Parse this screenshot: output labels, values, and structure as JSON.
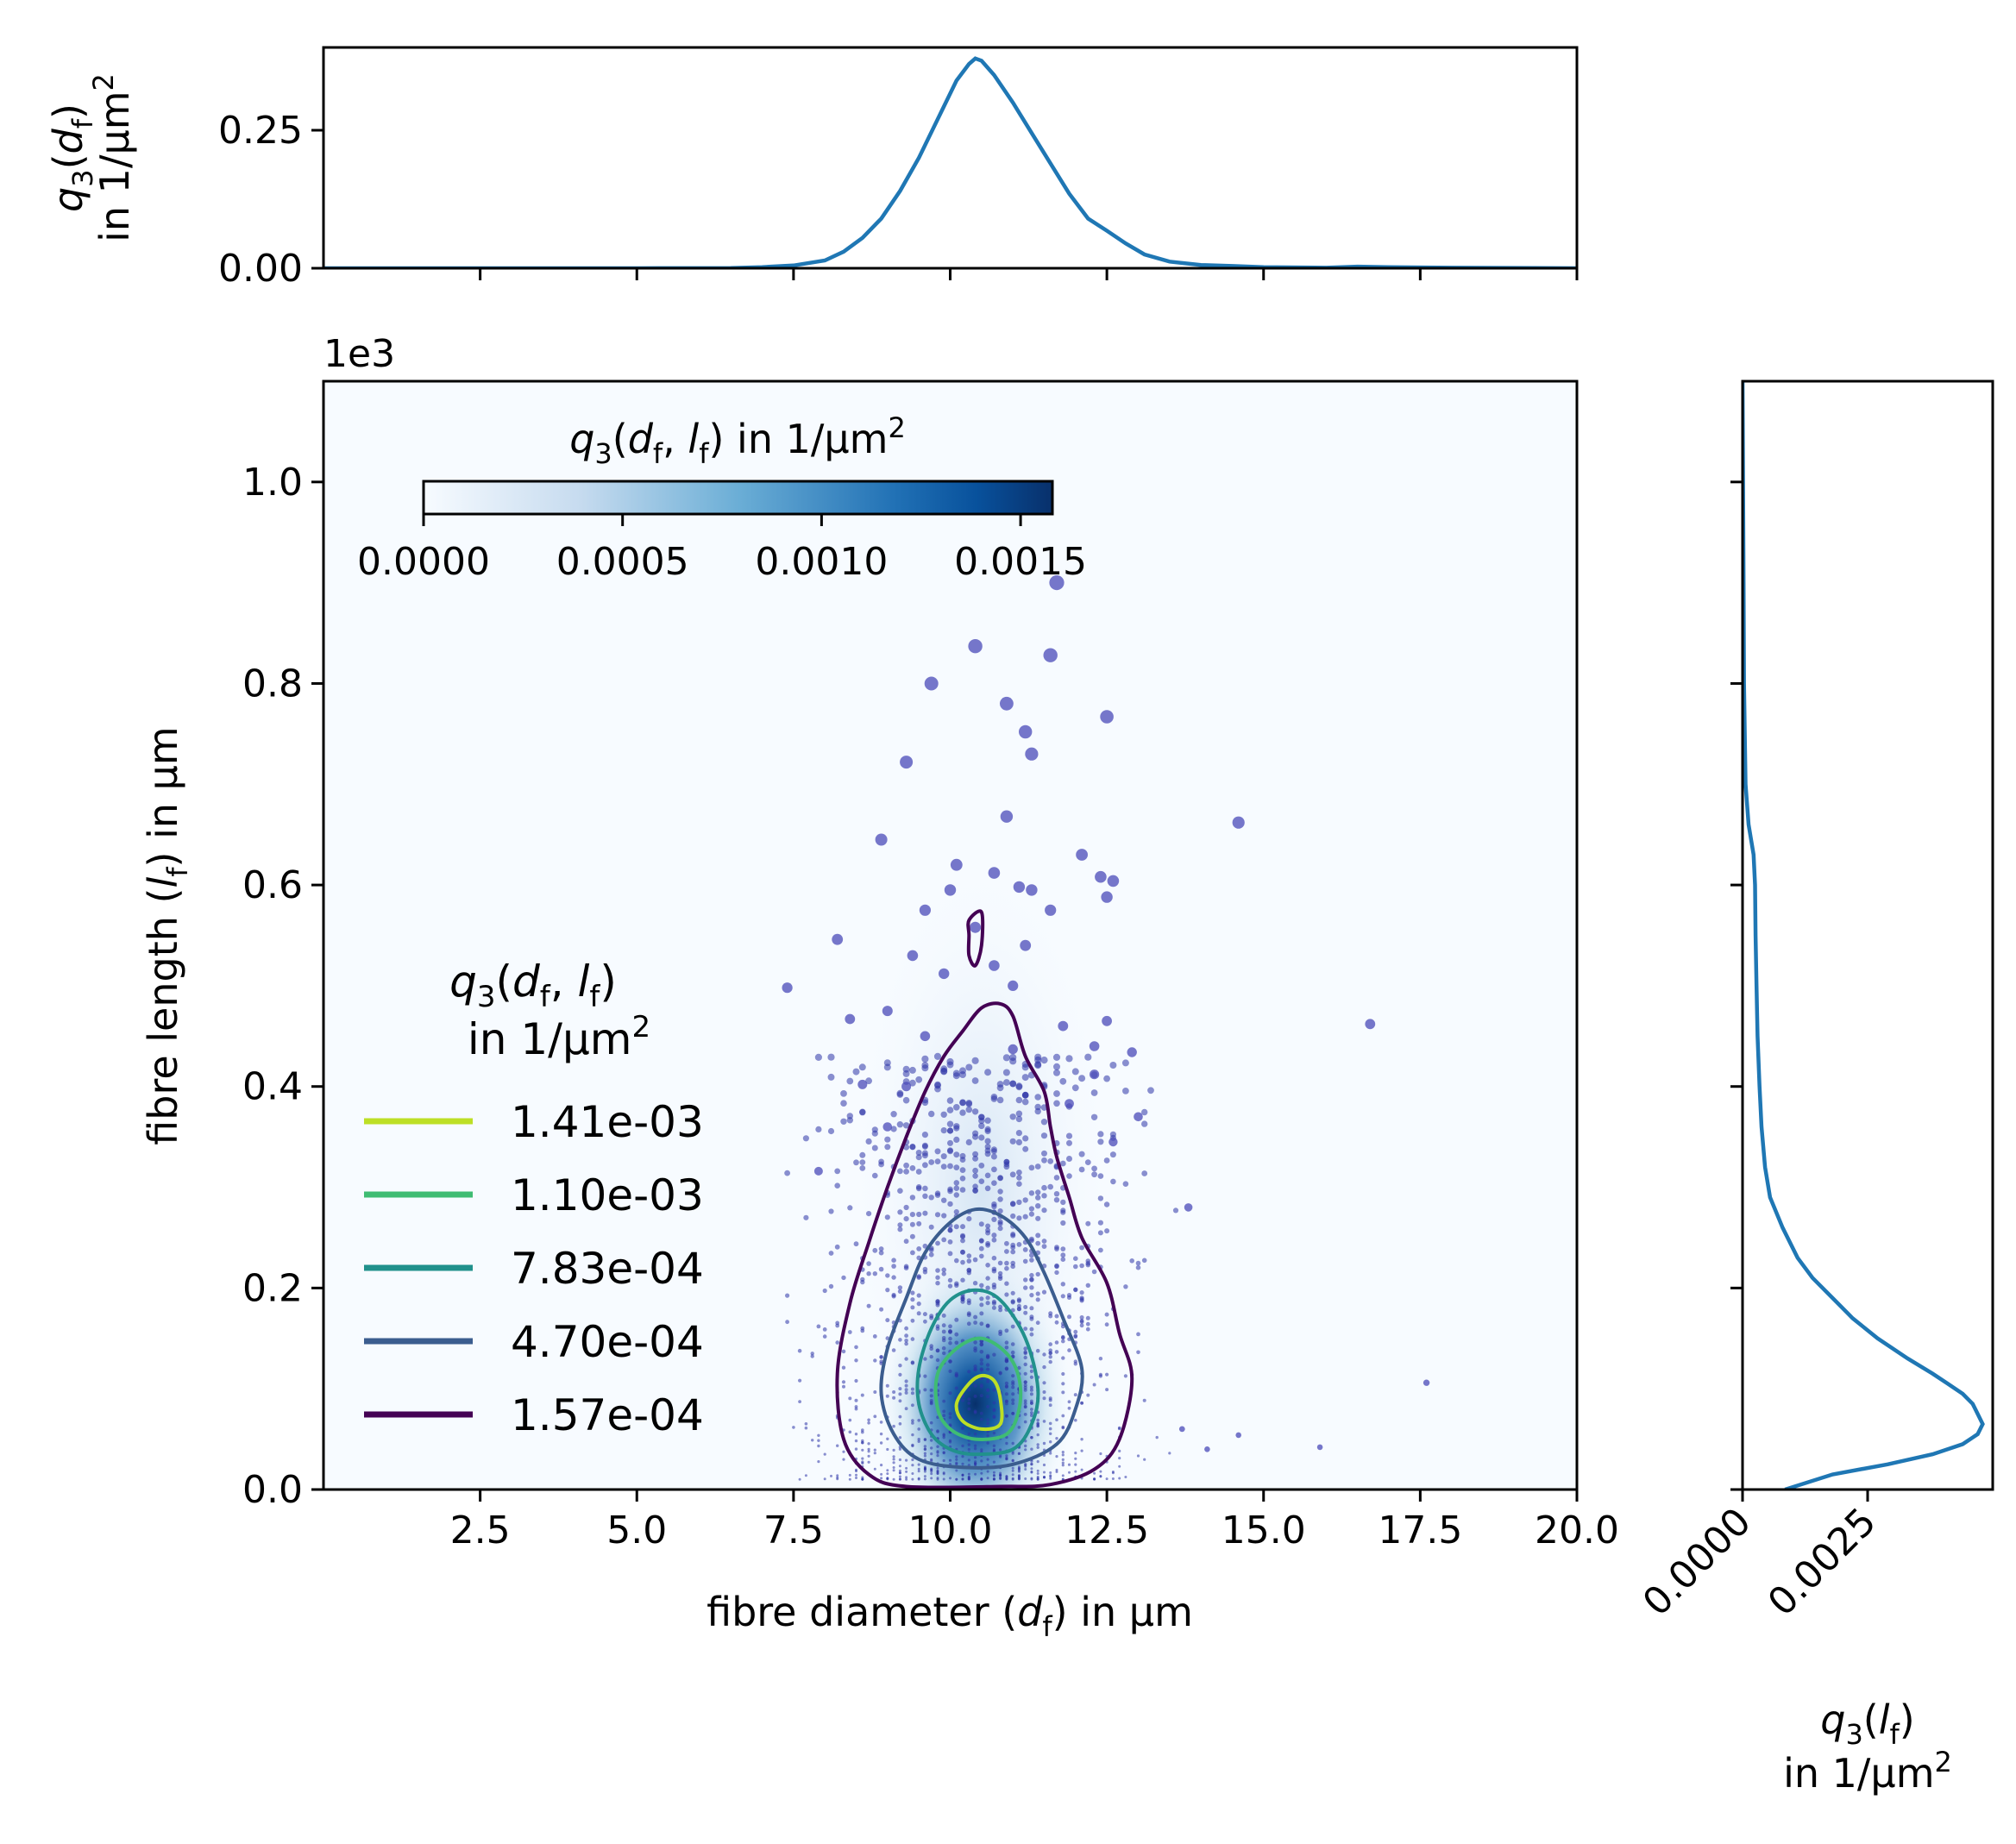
{
  "chart_data": [
    {
      "id": "marginal_diameter",
      "type": "line",
      "ylabel": [
        "q3(d_f)",
        "in 1/µm²"
      ],
      "xlim": [
        0,
        20
      ],
      "ylim": [
        0,
        0.4
      ],
      "yticks": [
        {
          "v": 0,
          "label": "0.00"
        },
        {
          "v": 0.25,
          "label": "0.25"
        }
      ],
      "xticks": [
        2.5,
        5,
        7.5,
        10,
        12.5,
        15,
        17.5,
        20
      ],
      "color": "#1f77b4",
      "x": [
        0,
        5,
        6.5,
        7.0,
        7.5,
        8.0,
        8.3,
        8.6,
        8.9,
        9.2,
        9.5,
        9.8,
        10.1,
        10.3,
        10.4,
        10.5,
        10.7,
        11.0,
        11.3,
        11.6,
        11.9,
        12.2,
        12.5,
        12.8,
        13.1,
        13.5,
        14.0,
        14.5,
        15.0,
        16.0,
        16.5,
        17.0,
        18.0,
        20.0
      ],
      "y": [
        0,
        0,
        0.0005,
        0.002,
        0.005,
        0.014,
        0.03,
        0.055,
        0.09,
        0.14,
        0.2,
        0.27,
        0.34,
        0.37,
        0.38,
        0.376,
        0.35,
        0.3,
        0.245,
        0.19,
        0.135,
        0.09,
        0.068,
        0.045,
        0.025,
        0.012,
        0.006,
        0.004,
        0.002,
        0.001,
        0.003,
        0.002,
        0.001,
        0
      ]
    },
    {
      "id": "joint_density",
      "type": "heatmap",
      "xlabel": "fibre diameter (d_f) in µm",
      "ylabel": "fibre length (l_f) in µm",
      "y_offset_text": "1e3",
      "xlim": [
        0,
        20
      ],
      "ylim": [
        0,
        1100
      ],
      "xticks": [
        {
          "v": 2.5,
          "label": "2.5"
        },
        {
          "v": 5,
          "label": "5.0"
        },
        {
          "v": 7.5,
          "label": "7.5"
        },
        {
          "v": 10,
          "label": "10.0"
        },
        {
          "v": 12.5,
          "label": "12.5"
        },
        {
          "v": 15,
          "label": "15.0"
        },
        {
          "v": 17.5,
          "label": "17.5"
        },
        {
          "v": 20,
          "label": "20.0"
        }
      ],
      "yticks": [
        {
          "v": 0,
          "label": "0.0"
        },
        {
          "v": 200,
          "label": "0.2"
        },
        {
          "v": 400,
          "label": "0.4"
        },
        {
          "v": 600,
          "label": "0.6"
        },
        {
          "v": 800,
          "label": "0.8"
        },
        {
          "v": 1000,
          "label": "1.0"
        }
      ],
      "density_peak": {
        "x": 10.4,
        "y": 85,
        "value": 0.00155
      },
      "colorbar": {
        "title": "q3(d_f, l_f) in 1/µm²",
        "range": [
          0,
          0.00158
        ],
        "ticks": [
          {
            "v": 0,
            "label": "0.0000"
          },
          {
            "v": 0.0005,
            "label": "0.0005"
          },
          {
            "v": 0.001,
            "label": "0.0010"
          },
          {
            "v": 0.0015,
            "label": "0.0015"
          }
        ]
      },
      "contour_legend": {
        "title": [
          "q3(d_f, l_f)",
          "in 1/µm²"
        ],
        "levels": [
          {
            "label": "1.41e-03",
            "color": "#bddf26"
          },
          {
            "label": "1.10e-03",
            "color": "#3fbc73"
          },
          {
            "label": "7.83e-04",
            "color": "#21918c"
          },
          {
            "label": "4.70e-04",
            "color": "#3b5d8f"
          },
          {
            "label": "1.57e-04",
            "color": "#440154"
          }
        ]
      },
      "contours": [
        {
          "level": "1.57e-04",
          "color": "#440154",
          "closed": true,
          "points": [
            [
              10.8,
              3
            ],
            [
              11.6,
              5
            ],
            [
              12.3,
              20
            ],
            [
              12.7,
              50
            ],
            [
              12.9,
              110
            ],
            [
              12.7,
              155
            ],
            [
              12.5,
              205
            ],
            [
              12.1,
              250
            ],
            [
              11.9,
              290
            ],
            [
              11.7,
              330
            ],
            [
              11.6,
              360
            ],
            [
              11.5,
              395
            ],
            [
              11.2,
              430
            ],
            [
              11.0,
              470
            ],
            [
              10.8,
              482
            ],
            [
              10.5,
              478
            ],
            [
              10.2,
              455
            ],
            [
              9.9,
              430
            ],
            [
              9.6,
              395
            ],
            [
              9.3,
              350
            ],
            [
              9.0,
              300
            ],
            [
              8.7,
              245
            ],
            [
              8.4,
              185
            ],
            [
              8.2,
              115
            ],
            [
              8.3,
              50
            ],
            [
              8.7,
              15
            ],
            [
              9.3,
              3
            ]
          ]
        },
        {
          "level": "1.57e-04",
          "color": "#440154",
          "closed": true,
          "points": [
            [
              10.3,
              565
            ],
            [
              10.5,
              573
            ],
            [
              10.5,
              540
            ],
            [
              10.4,
              520
            ],
            [
              10.3,
              530
            ],
            [
              10.3,
              550
            ]
          ]
        },
        {
          "level": "4.70e-04",
          "color": "#3b5d8f",
          "closed": true,
          "points": [
            [
              10.2,
              22
            ],
            [
              11.0,
              25
            ],
            [
              11.7,
              45
            ],
            [
              12.0,
              80
            ],
            [
              12.1,
              120
            ],
            [
              11.8,
              170
            ],
            [
              11.5,
              215
            ],
            [
              11.2,
              250
            ],
            [
              10.8,
              272
            ],
            [
              10.4,
              278
            ],
            [
              10.0,
              265
            ],
            [
              9.6,
              235
            ],
            [
              9.3,
              190
            ],
            [
              9.0,
              140
            ],
            [
              8.9,
              95
            ],
            [
              9.1,
              55
            ],
            [
              9.5,
              30
            ]
          ]
        },
        {
          "level": "7.83e-04",
          "color": "#21918c",
          "closed": true,
          "points": [
            [
              10.4,
              35
            ],
            [
              11.0,
              40
            ],
            [
              11.3,
              65
            ],
            [
              11.4,
              100
            ],
            [
              11.2,
              150
            ],
            [
              10.8,
              188
            ],
            [
              10.4,
              198
            ],
            [
              10.0,
              188
            ],
            [
              9.7,
              160
            ],
            [
              9.5,
              120
            ],
            [
              9.5,
              85
            ],
            [
              9.7,
              55
            ],
            [
              10.0,
              40
            ]
          ]
        },
        {
          "level": "1.10e-03",
          "color": "#3fbc73",
          "closed": true,
          "points": [
            [
              10.4,
              50
            ],
            [
              10.9,
              55
            ],
            [
              11.1,
              80
            ],
            [
              11.1,
              110
            ],
            [
              10.9,
              135
            ],
            [
              10.5,
              150
            ],
            [
              10.1,
              140
            ],
            [
              9.8,
              115
            ],
            [
              9.8,
              80
            ],
            [
              10.0,
              60
            ]
          ]
        },
        {
          "level": "1.41e-03",
          "color": "#bddf26",
          "closed": true,
          "points": [
            [
              10.5,
              60
            ],
            [
              10.8,
              65
            ],
            [
              10.8,
              90
            ],
            [
              10.7,
              108
            ],
            [
              10.5,
              113
            ],
            [
              10.3,
              105
            ],
            [
              10.1,
              85
            ],
            [
              10.2,
              68
            ]
          ]
        }
      ],
      "scatter_outliers": [
        [
          11.7,
          900
        ],
        [
          10.4,
          837
        ],
        [
          11.6,
          828
        ],
        [
          9.7,
          800
        ],
        [
          10.9,
          780
        ],
        [
          12.5,
          767
        ],
        [
          11.2,
          752
        ],
        [
          11.3,
          730
        ],
        [
          9.3,
          722
        ],
        [
          14.6,
          662
        ],
        [
          10.9,
          668
        ],
        [
          12.1,
          630
        ],
        [
          8.9,
          645
        ],
        [
          10.1,
          620
        ],
        [
          12.4,
          608
        ],
        [
          12.5,
          588
        ],
        [
          12.6,
          604
        ],
        [
          10.7,
          612
        ],
        [
          11.1,
          598
        ],
        [
          9.6,
          575
        ],
        [
          10.4,
          558
        ],
        [
          11.3,
          595
        ],
        [
          11.6,
          575
        ],
        [
          10.0,
          595
        ],
        [
          11.2,
          540
        ],
        [
          8.2,
          546
        ],
        [
          9.4,
          530
        ],
        [
          10.7,
          520
        ],
        [
          9.9,
          512
        ],
        [
          11.0,
          500
        ],
        [
          16.7,
          462
        ],
        [
          12.5,
          465
        ],
        [
          12.3,
          440
        ],
        [
          7.4,
          498
        ],
        [
          12.9,
          434
        ],
        [
          17.6,
          106
        ],
        [
          15.9,
          42
        ],
        [
          14.6,
          54
        ],
        [
          13.7,
          60
        ],
        [
          14.1,
          40
        ],
        [
          8.6,
          402
        ],
        [
          12.6,
          345
        ],
        [
          13.0,
          370
        ],
        [
          9.3,
          400
        ],
        [
          13.8,
          280
        ],
        [
          7.9,
          316
        ],
        [
          9.0,
          360
        ],
        [
          12.3,
          412
        ],
        [
          11.9,
          383
        ],
        [
          8.4,
          467
        ],
        [
          9.6,
          450
        ],
        [
          11.8,
          460
        ],
        [
          9.0,
          475
        ],
        [
          11.0,
          437
        ]
      ]
    },
    {
      "id": "marginal_length",
      "type": "line",
      "xlabel": [
        "q3(l_f)",
        "in 1/µm²"
      ],
      "xlim": [
        0,
        0.005
      ],
      "ylim": [
        0,
        1100
      ],
      "xticks": [
        {
          "v": 0,
          "label": "0.0000"
        },
        {
          "v": 0.0025,
          "label": "0.0025"
        }
      ],
      "color": "#1f77b4",
      "y": [
        0,
        15,
        25,
        35,
        45,
        55,
        65,
        75,
        85,
        95,
        105,
        115,
        130,
        150,
        170,
        190,
        210,
        230,
        260,
        290,
        320,
        360,
        400,
        450,
        500,
        550,
        600,
        630,
        660,
        700,
        800,
        900,
        1000,
        1100
      ],
      "x": [
        0.00085,
        0.0018,
        0.0029,
        0.0038,
        0.0044,
        0.0047,
        0.0048,
        0.0047,
        0.0046,
        0.0044,
        0.0041,
        0.0038,
        0.0033,
        0.0027,
        0.0022,
        0.0018,
        0.0014,
        0.0011,
        0.0008,
        0.00055,
        0.00045,
        0.00038,
        0.00034,
        0.0003,
        0.00028,
        0.00026,
        0.00025,
        0.00022,
        0.00012,
        6e-05,
        3e-05,
        2e-05,
        1e-05,
        0
      ]
    }
  ]
}
